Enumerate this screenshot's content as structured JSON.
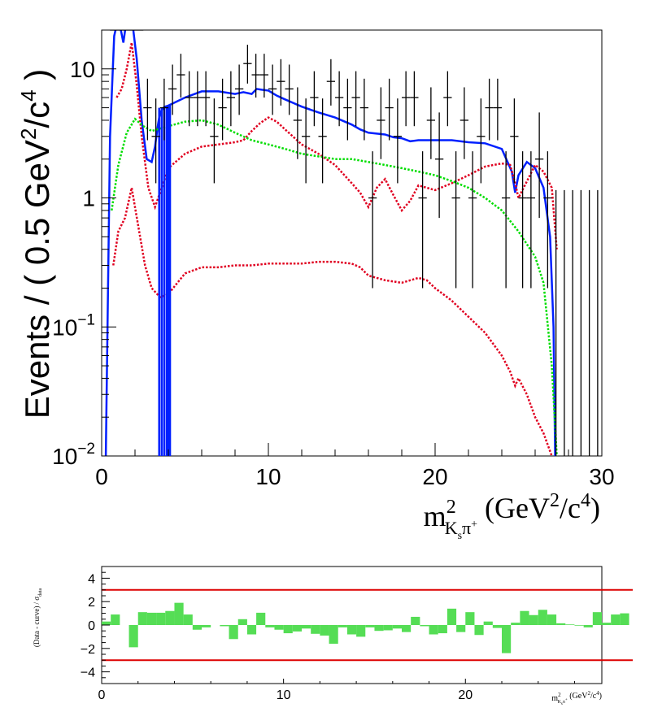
{
  "colors": {
    "total": "#0020ff",
    "component_red": "#e00020",
    "component_green": "#00dd00",
    "data": "#000000",
    "pull_bars": "#55dd55",
    "pull_lines": "#dd0000"
  },
  "chart_data": [
    {
      "type": "line",
      "scale": "log-y",
      "ylabel": {
        "main": "Events / ( 0.5 GeV",
        "sup1": "2",
        "mid": "/c",
        "sup2": "4",
        "end": " )"
      },
      "xlabel": {
        "m": "m",
        "sup": "2",
        "sub": "K",
        "subsub": "s",
        "pi": "π",
        "piplus": "+",
        "unit_open": " (GeV",
        "unit_sup1": "2",
        "unit_mid": "/c",
        "unit_sup2": "4",
        "unit_close": ")"
      },
      "xlim": [
        0,
        30
      ],
      "ylim": [
        0.01,
        20
      ],
      "x_ticks": [
        "0",
        "10",
        "20",
        "30"
      ],
      "y_ticks": [
        {
          "value": 0.01,
          "base": "10",
          "exp": "−2"
        },
        {
          "value": 0.1,
          "base": "10",
          "exp": "−1"
        },
        {
          "value": 1,
          "base": "1",
          "exp": ""
        },
        {
          "value": 10,
          "base": "10",
          "exp": ""
        }
      ],
      "series": [
        {
          "key": "total",
          "color": "#0020ff",
          "style": "solid",
          "x": [
            0.25,
            0.5,
            0.75,
            1,
            1.3,
            1.6,
            1.9,
            2.1,
            2.4,
            2.7,
            3,
            3.2,
            3.35,
            3.45,
            3.5,
            3.6,
            3.7,
            3.8,
            4,
            5,
            6,
            7,
            8,
            8.5,
            9,
            9.3,
            9.6,
            10,
            10.5,
            11,
            12,
            13,
            14,
            15,
            15.5,
            16,
            17,
            17.5,
            18,
            18.5,
            19,
            20,
            21,
            22,
            23,
            24,
            24.6,
            24.8,
            25,
            25.5,
            26,
            26.5,
            26.9,
            27.1,
            27.2
          ],
          "y": [
            0.01,
            3,
            18,
            25,
            16,
            30,
            20,
            12,
            4,
            2,
            1.9,
            2.5,
            3.5,
            4.2,
            4.5,
            4.8,
            5,
            5.1,
            5.2,
            6,
            6.7,
            6.7,
            6.4,
            6.6,
            6.4,
            7,
            6.9,
            6.8,
            6.2,
            5.8,
            5.1,
            4.6,
            4.2,
            3.7,
            3.4,
            3.2,
            3.1,
            2.95,
            2.9,
            2.75,
            2.8,
            2.8,
            2.8,
            2.7,
            2.65,
            2.4,
            1.6,
            1.1,
            1.5,
            1.9,
            1.7,
            1.2,
            0.5,
            0.1,
            0.01
          ]
        },
        {
          "key": "comp-red-1",
          "color": "#e00020",
          "style": "dotted",
          "x": [
            0.9,
            1.2,
            1.5,
            1.8,
            2.1,
            2.4,
            2.8,
            3.2,
            3.6,
            4,
            5,
            6,
            7,
            8,
            8.5,
            9,
            9.5,
            10,
            10.5,
            11,
            12,
            13,
            14,
            15,
            15.5,
            16,
            16.5,
            17,
            17.5,
            18,
            18.5,
            19,
            20,
            21,
            22,
            23,
            24,
            24.5,
            24.8,
            25,
            26,
            26.5,
            27,
            27.3
          ],
          "y": [
            6,
            7,
            10,
            16,
            7.5,
            3,
            1.2,
            0.85,
            1.2,
            1.7,
            2.2,
            2.5,
            2.6,
            2.7,
            2.8,
            3.3,
            3.8,
            4.2,
            3.9,
            3.4,
            2.6,
            2.2,
            1.8,
            1.3,
            1.1,
            0.85,
            1.2,
            1.4,
            1.05,
            0.8,
            0.95,
            1.25,
            1.15,
            1.3,
            1.5,
            1.75,
            1.85,
            1.8,
            1.3,
            1.0,
            1.8,
            1.6,
            1.2,
            0.4
          ]
        },
        {
          "key": "comp-green",
          "color": "#00dd00",
          "style": "dotted",
          "x": [
            0.6,
            1,
            1.5,
            2,
            2.5,
            3,
            4,
            5,
            6,
            7,
            8,
            9,
            10,
            11,
            12,
            13,
            14,
            15,
            16,
            17,
            18,
            19,
            20,
            21,
            22,
            23,
            24,
            25,
            26,
            26.5,
            27,
            27.3
          ],
          "y": [
            0.8,
            1.8,
            3.2,
            4.1,
            3.6,
            3.3,
            3.6,
            3.9,
            4.0,
            3.7,
            3.2,
            2.8,
            2.6,
            2.4,
            2.2,
            2.1,
            2.0,
            2.0,
            1.9,
            1.8,
            1.7,
            1.6,
            1.5,
            1.35,
            1.2,
            1.0,
            0.8,
            0.55,
            0.35,
            0.22,
            0.05,
            0.01
          ]
        },
        {
          "key": "comp-red-2",
          "color": "#e00020",
          "style": "dotted",
          "x": [
            0.7,
            1,
            1.4,
            1.8,
            2.2,
            2.6,
            3,
            3.5,
            4,
            5,
            6,
            7,
            8,
            9,
            10,
            11,
            12,
            13,
            14,
            15,
            15.5,
            16,
            16.5,
            17,
            18,
            19,
            19.5,
            20,
            21,
            22,
            23,
            24,
            24.5,
            24.8,
            25,
            25.5,
            26,
            26.5,
            27,
            27.3
          ],
          "y": [
            0.3,
            0.55,
            0.7,
            1.2,
            0.6,
            0.3,
            0.2,
            0.17,
            0.18,
            0.26,
            0.29,
            0.29,
            0.3,
            0.3,
            0.31,
            0.31,
            0.31,
            0.32,
            0.32,
            0.31,
            0.29,
            0.25,
            0.24,
            0.23,
            0.22,
            0.24,
            0.23,
            0.2,
            0.16,
            0.12,
            0.09,
            0.06,
            0.045,
            0.035,
            0.04,
            0.03,
            0.02,
            0.015,
            0.01,
            0.007
          ]
        },
        {
          "key": "total-spikes",
          "color": "#0020ff",
          "style": "solid",
          "spikes_x": [
            3.45,
            3.6,
            3.75,
            3.9,
            4.0,
            4.1
          ],
          "top": [
            5,
            5,
            5.1,
            5.2,
            5.2,
            5.2
          ]
        }
      ],
      "data_points": {
        "x": [
          0.75,
          1.25,
          1.75,
          2.25,
          2.75,
          3.25,
          3.75,
          4.25,
          4.75,
          5.25,
          5.75,
          6.25,
          6.75,
          7.25,
          7.75,
          8.25,
          8.75,
          9.25,
          9.75,
          10.25,
          10.75,
          11.25,
          11.75,
          12.25,
          12.75,
          13.25,
          13.75,
          14.25,
          14.75,
          15.25,
          15.75,
          16.25,
          16.75,
          17.25,
          17.75,
          18.25,
          18.75,
          19.25,
          19.75,
          20.25,
          20.75,
          21.25,
          21.75,
          22.25,
          22.75,
          23.25,
          23.75,
          24.25,
          24.75,
          25.25,
          25.75,
          26.25,
          26.75,
          27.25,
          27.75,
          28.25,
          28.75,
          29.25,
          29.75
        ],
        "y": [
          20,
          20,
          20,
          20,
          5,
          3,
          5,
          7,
          9,
          6,
          6,
          6,
          3,
          5,
          6,
          7,
          11,
          9,
          9,
          7,
          8,
          7,
          4,
          3,
          6,
          3,
          8,
          6,
          5,
          6,
          5,
          1,
          4,
          5,
          3,
          6,
          6,
          1,
          4,
          2,
          6,
          1,
          4,
          1,
          3,
          5,
          5,
          1,
          3,
          1,
          1,
          2,
          1,
          null,
          null,
          null,
          null,
          null,
          null
        ],
        "errlo": [
          null,
          null,
          null,
          null,
          2.2,
          1.7,
          2.2,
          2.6,
          3,
          2.4,
          2.4,
          2.4,
          1.7,
          2.2,
          2.4,
          2.6,
          3.3,
          3,
          3,
          2.6,
          2.8,
          2.6,
          2,
          1.7,
          2.4,
          1.7,
          2.8,
          2.4,
          2.2,
          2.4,
          2.2,
          0.8,
          2,
          2.2,
          1.7,
          2.4,
          2.4,
          0.8,
          2,
          1.3,
          2.4,
          0.8,
          2,
          0.8,
          1.7,
          2.2,
          2.2,
          0.8,
          1.7,
          0.8,
          0.8,
          1.3,
          0.8,
          null,
          null,
          null,
          null,
          null,
          null
        ],
        "errhi": [
          null,
          null,
          null,
          null,
          3.4,
          2.9,
          3.4,
          3.8,
          4.1,
          3.6,
          3.6,
          3.6,
          2.9,
          3.4,
          3.6,
          3.8,
          4.4,
          4.1,
          4.1,
          3.8,
          3.9,
          3.8,
          3.2,
          2.9,
          3.6,
          2.9,
          3.9,
          3.6,
          3.4,
          3.6,
          3.4,
          1.3,
          3.2,
          3.4,
          2.9,
          3.6,
          3.6,
          1.3,
          3.2,
          2.6,
          3.6,
          1.3,
          3.2,
          1.3,
          2.9,
          3.4,
          3.4,
          1.3,
          2.9,
          1.3,
          1.3,
          2.6,
          1.3,
          null,
          null,
          null,
          null,
          null,
          null
        ],
        "empty_bins_upper": 1.15
      }
    },
    {
      "type": "bar",
      "ylabel": "(Data - curve) / σ",
      "ylabel_sub": "data",
      "xlabel": {
        "m": "m",
        "sup": "2",
        "sub": "K",
        "subsub": "s",
        "pi": "π",
        "piplus": "+",
        "unit": " (GeV",
        "unit_sup1": "2",
        "unit_mid": "/c",
        "unit_sup2": "4",
        "unit_close": ")"
      },
      "xlim": [
        0,
        27.5
      ],
      "ylim": [
        -5,
        5
      ],
      "x_ticks": [
        "0",
        "10",
        "20"
      ],
      "y_ticks": [
        "4",
        "2",
        "0",
        "−2",
        "−4"
      ],
      "reference_lines": [
        3,
        -3
      ],
      "bin_width": 0.5,
      "x_start": 0,
      "values": [
        0.3,
        0.9,
        0,
        -1.9,
        1.1,
        1.05,
        1.05,
        1.2,
        1.9,
        0.9,
        -0.4,
        -0.2,
        0,
        -0.1,
        -1.2,
        0.5,
        -0.8,
        1.05,
        -0.2,
        -0.4,
        -0.7,
        -0.55,
        -0.3,
        -0.75,
        -0.9,
        -1.6,
        -0.2,
        -0.8,
        -1,
        -0.2,
        -0.5,
        -0.45,
        -0.3,
        -0.6,
        0.7,
        -0.1,
        -0.8,
        -0.7,
        1.4,
        -0.6,
        1.1,
        -0.85,
        0.3,
        -0.25,
        -2.4,
        0.2,
        1.2,
        0.85,
        1.3,
        0.9,
        0.15,
        0.05,
        -0.05,
        -0.2,
        1.1,
        0.2,
        0.9,
        1.0
      ]
    }
  ]
}
